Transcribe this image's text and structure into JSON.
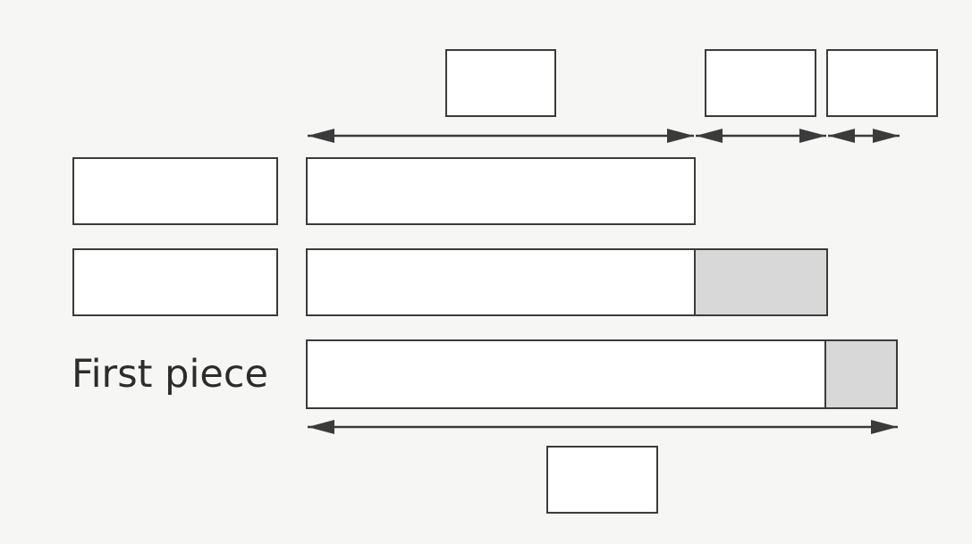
{
  "diagram": {
    "first_piece_label": "First piece",
    "colors": {
      "line": "#3b3b3b",
      "shaded": "#d8d8d8",
      "box_fill": "#ffffff",
      "background": "#f6f7f5"
    }
  }
}
